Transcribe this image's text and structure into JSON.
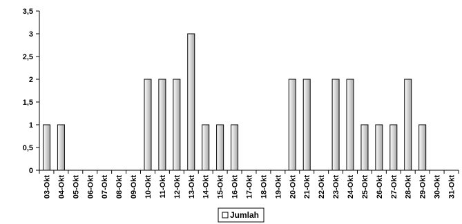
{
  "chart_data": {
    "type": "bar",
    "categories": [
      "03-Okt",
      "04-Okt",
      "05-Okt",
      "06-Okt",
      "07-Okt",
      "08-Okt",
      "09-Okt",
      "10-Okt",
      "11-Okt",
      "12-Okt",
      "13-Okt",
      "14-Okt",
      "15-Okt",
      "16-Okt",
      "17-Okt",
      "18-Okt",
      "19-Okt",
      "20-Okt",
      "21-Okt",
      "22-Okt",
      "23-Okt",
      "24-Okt",
      "25-Okt",
      "26-Okt",
      "27-Okt",
      "28-Okt",
      "29-Okt",
      "30-Okt",
      "31-Okt"
    ],
    "series": [
      {
        "name": "Jumlah",
        "values": [
          1,
          1,
          0,
          0,
          0,
          0,
          0,
          2,
          2,
          2,
          3,
          1,
          1,
          1,
          0,
          0,
          0,
          2,
          2,
          0,
          2,
          2,
          1,
          1,
          1,
          2,
          1,
          0,
          0
        ]
      }
    ],
    "y_ticks": [
      "0",
      "0,5",
      "1",
      "1,5",
      "2",
      "2,5",
      "3",
      "3,5"
    ],
    "ylim": [
      0,
      3.5
    ],
    "grid": false,
    "legend_position": "bottom",
    "title": "",
    "xlabel": "",
    "ylabel": "",
    "colors": {
      "bar_light": "#ffffff",
      "bar_dark": "#a6a6a6",
      "outline": "#000000"
    }
  }
}
